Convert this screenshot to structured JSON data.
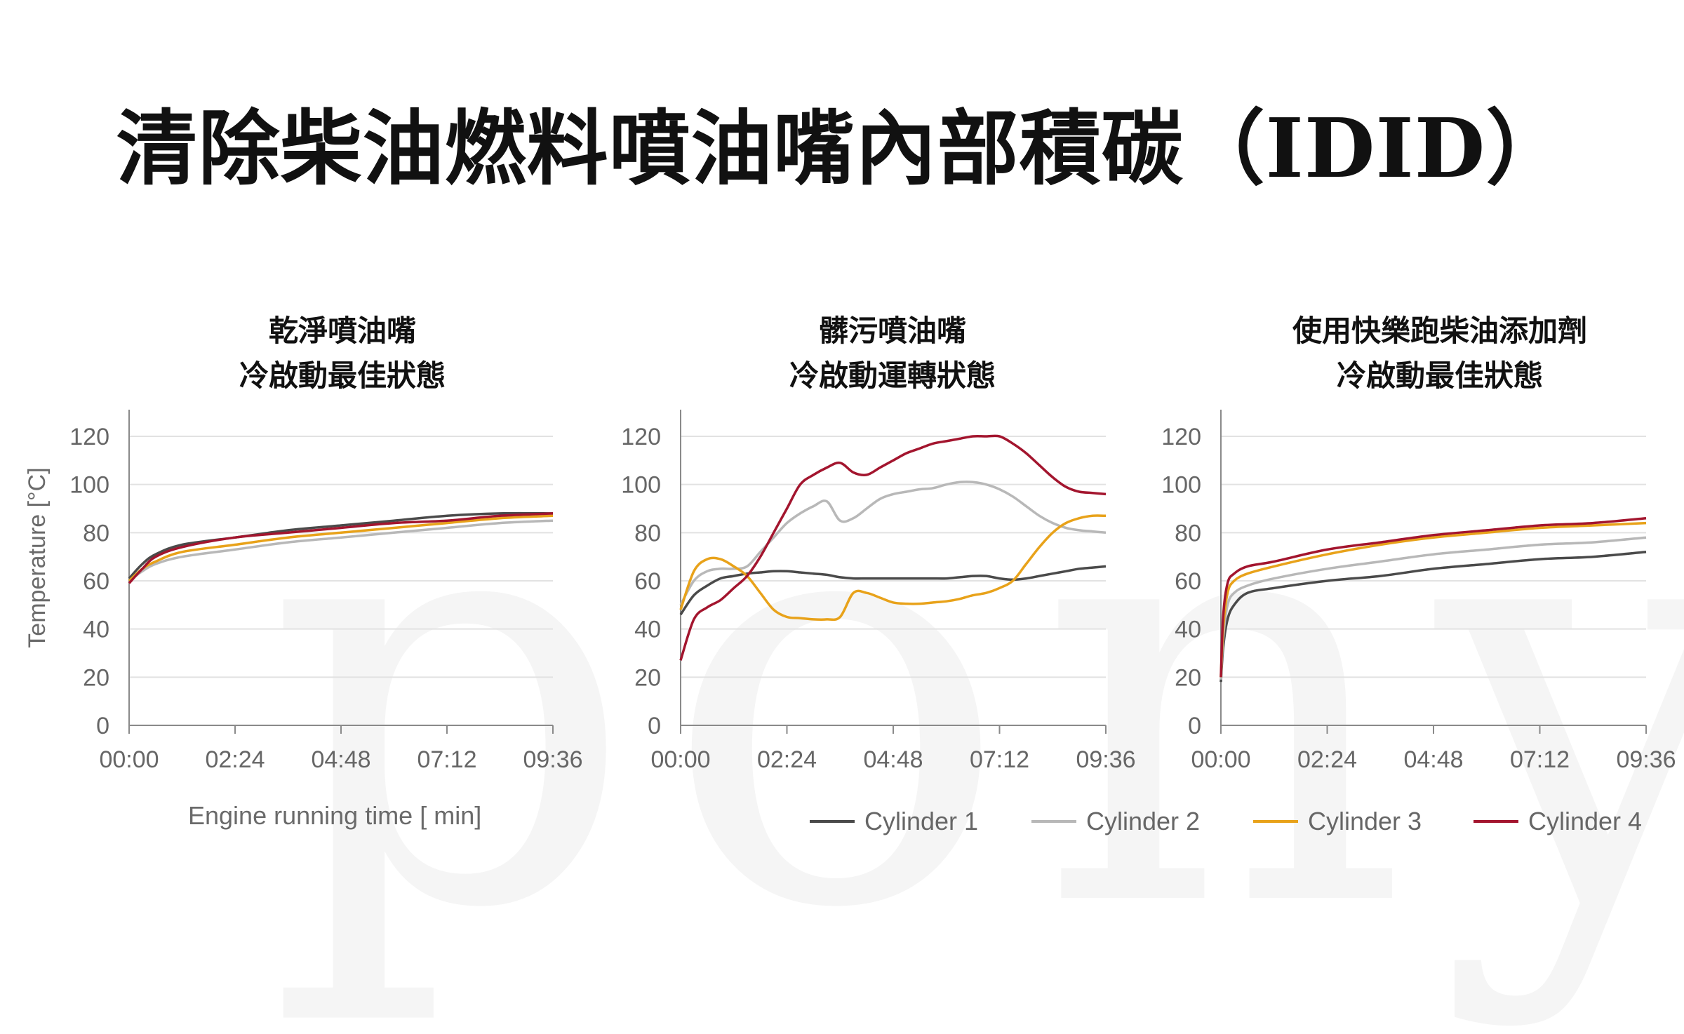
{
  "title": "清除柴油燃料噴油嘴內部積碳（IDID）",
  "watermark": "pony",
  "xlabel": "Engine running time [ min]",
  "ylabel": "Temperature [°C]",
  "series_colors": {
    "Cylinder 1": "#4a4a4a",
    "Cylinder 2": "#b8b8b8",
    "Cylinder 3": "#e8a21a",
    "Cylinder 4": "#a3152e"
  },
  "legend": [
    {
      "name": "Cylinder 1",
      "color": "#4a4a4a"
    },
    {
      "name": "Cylinder 2",
      "color": "#b8b8b8"
    },
    {
      "name": "Cylinder 3",
      "color": "#e8a21a"
    },
    {
      "name": "Cylinder 4",
      "color": "#a3152e"
    }
  ],
  "chart_data": [
    {
      "type": "line",
      "title_line1": "乾淨噴油嘴",
      "title_line2": "冷啟動最佳狀態",
      "xlabel": "Engine running time [ min]",
      "ylabel": "Temperature [°C]",
      "x_ticks": [
        "00:00",
        "02:24",
        "04:48",
        "07:12",
        "09:36"
      ],
      "y_ticks": [
        0,
        20,
        40,
        60,
        80,
        100,
        120
      ],
      "ylim": [
        0,
        120
      ],
      "xlim": [
        0,
        9.6
      ],
      "grid": true,
      "x": [
        0,
        0.3,
        0.6,
        1.2,
        2.4,
        3.6,
        4.8,
        6.0,
        7.2,
        8.4,
        9.6
      ],
      "series": [
        {
          "name": "Cylinder 1",
          "values": [
            61,
            67,
            71,
            75,
            78,
            81,
            83,
            85,
            87,
            88,
            88
          ]
        },
        {
          "name": "Cylinder 2",
          "values": [
            60,
            64,
            67,
            70,
            73,
            76,
            78,
            80,
            82,
            84,
            85
          ]
        },
        {
          "name": "Cylinder 3",
          "values": [
            60,
            65,
            68,
            72,
            75,
            78,
            80,
            82,
            84,
            86,
            87
          ]
        },
        {
          "name": "Cylinder 4",
          "values": [
            59,
            65,
            70,
            74,
            78,
            80,
            82,
            84,
            85,
            87,
            88
          ]
        }
      ]
    },
    {
      "type": "line",
      "title_line1": "髒污噴油嘴",
      "title_line2": "冷啟動運轉狀態",
      "x_ticks": [
        "00:00",
        "02:24",
        "04:48",
        "07:12",
        "09:36"
      ],
      "y_ticks": [
        0,
        20,
        40,
        60,
        80,
        100,
        120
      ],
      "ylim": [
        0,
        120
      ],
      "xlim": [
        0,
        9.6
      ],
      "grid": true,
      "x": [
        0,
        0.3,
        0.6,
        0.9,
        1.2,
        1.5,
        1.8,
        2.1,
        2.4,
        2.7,
        3.0,
        3.3,
        3.6,
        3.9,
        4.2,
        4.5,
        4.8,
        5.1,
        5.4,
        5.7,
        6.0,
        6.3,
        6.6,
        6.9,
        7.2,
        7.5,
        7.8,
        8.1,
        8.4,
        8.7,
        9.0,
        9.3,
        9.6
      ],
      "series": [
        {
          "name": "Cylinder 1",
          "values": [
            46,
            54,
            58,
            61,
            62,
            63,
            63.5,
            64,
            64,
            63.5,
            63,
            62.5,
            61.5,
            61,
            61,
            61,
            61,
            61,
            61,
            61,
            61,
            61.5,
            62,
            62,
            61,
            60.5,
            61,
            62,
            63,
            64,
            65,
            65.5,
            66
          ]
        },
        {
          "name": "Cylinder 2",
          "values": [
            50,
            60,
            64,
            65,
            65,
            66,
            72,
            78,
            84,
            88,
            91,
            93,
            85,
            86,
            90,
            94,
            96,
            97,
            98,
            98.5,
            100,
            101,
            101,
            100,
            98,
            95,
            91,
            87,
            84,
            82,
            81,
            80.5,
            80
          ]
        },
        {
          "name": "Cylinder 3",
          "values": [
            48,
            64,
            69,
            69,
            66,
            62,
            55,
            48,
            45,
            44.5,
            44,
            44,
            45,
            55,
            55,
            53,
            51,
            50.5,
            50.5,
            51,
            51.5,
            52.5,
            54,
            55,
            57,
            60,
            67,
            74,
            80,
            84,
            86,
            87,
            87
          ]
        },
        {
          "name": "Cylinder 4",
          "values": [
            27,
            44,
            49,
            52,
            57,
            62,
            70,
            80,
            90,
            100,
            104,
            107,
            109,
            105,
            104,
            107,
            110,
            113,
            115,
            117,
            118,
            119,
            120,
            120,
            120,
            117,
            113,
            108,
            103,
            99,
            97,
            96.5,
            96
          ]
        }
      ]
    },
    {
      "type": "line",
      "title_line1": "使用快樂跑柴油添加劑",
      "title_line2": "冷啟動最佳狀態",
      "x_ticks": [
        "00:00",
        "02:24",
        "04:48",
        "07:12",
        "09:36"
      ],
      "y_ticks": [
        0,
        20,
        40,
        60,
        80,
        100,
        120
      ],
      "ylim": [
        0,
        120
      ],
      "xlim": [
        0,
        9.6
      ],
      "grid": true,
      "x": [
        0,
        0.05,
        0.15,
        0.3,
        0.6,
        1.2,
        2.4,
        3.6,
        4.8,
        6.0,
        7.2,
        8.4,
        9.6
      ],
      "series": [
        {
          "name": "Cylinder 1",
          "values": [
            18,
            32,
            44,
            50,
            55,
            57,
            60,
            62,
            65,
            67,
            69,
            70,
            72
          ]
        },
        {
          "name": "Cylinder 2",
          "values": [
            19,
            36,
            50,
            55,
            58,
            61,
            65,
            68,
            71,
            73,
            75,
            76,
            78
          ]
        },
        {
          "name": "Cylinder 3",
          "values": [
            20,
            40,
            55,
            60,
            63,
            66,
            71,
            75,
            78,
            80,
            82,
            83,
            84
          ]
        },
        {
          "name": "Cylinder 4",
          "values": [
            20,
            45,
            59,
            63,
            66,
            68,
            73,
            76,
            79,
            81,
            83,
            84,
            86
          ]
        }
      ]
    }
  ]
}
